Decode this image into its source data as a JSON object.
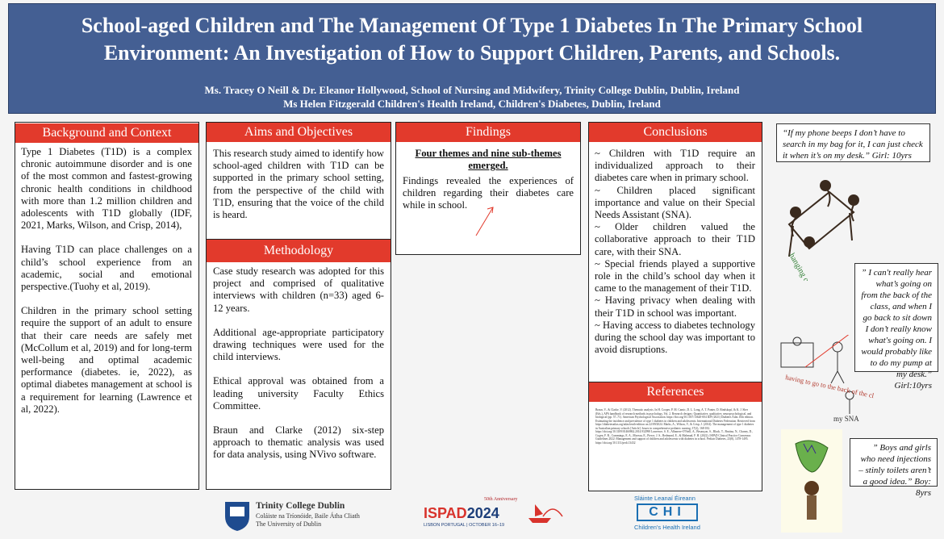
{
  "header": {
    "title": "School-aged Children and The Management Of Type 1 Diabetes In The Primary School Environment: An Investigation of How to Support Children, Parents, and Schools.",
    "authors_line1": "Ms. Tracey O Neill & Dr. Eleanor Hollywood, School of Nursing and Midwifery, Trinity College Dublin, Dublin, Ireland",
    "authors_line2": "Ms Helen Fitzgerald Children's Health Ireland, Children's Diabetes, Dublin, Ireland"
  },
  "background": {
    "title": "Background and Context",
    "p1": "Type 1 Diabetes (T1D) is a complex chronic autoimmune disorder and is one of the most common and fastest-growing chronic health conditions in childhood with more than 1.2 million children and adolescents with T1D globally (IDF, 2021, Marks, Wilson, and Crisp, 2014),",
    "p2": "Having T1D can place challenges on a child’s school experience from an academic, social and emotional perspective.(Tuohy et al, 2019).",
    "p3": "Children in the primary school setting require the support of an adult to ensure that their care needs are safely met (McCollum et al, 2019) and for long-term well-being and optimal academic performance (diabetes. ie, 2022), as optimal diabetes management at school is a requirement for learning (Lawrence et al, 2022)."
  },
  "aims": {
    "title": "Aims and Objectives",
    "text": "This research study aimed to identify how school-aged children with T1D can be supported in the primary school setting, from the perspective of the child with T1D, ensuring that the voice of the child is heard."
  },
  "methodology": {
    "title": "Methodology",
    "p1": "Case study research was adopted for this project and comprised of qualitative interviews with children (n=33) aged 6-12 years.",
    "p2": "Additional age-appropriate participatory drawing techniques were used for the child interviews.",
    "p3": "Ethical approval was obtained from a leading university Faculty Ethics Committee.",
    "p4": "Braun and Clarke (2012) six-step approach to thematic analysis was used for data analysis, using NVivo software."
  },
  "findings": {
    "title": "Findings",
    "heading": "Four themes and nine sub-themes emerged",
    "heading_period": ".",
    "text": "Findings revealed the experiences of children regarding their diabetes care while in school."
  },
  "conclusions": {
    "title": "Conclusions",
    "items": [
      "~ Children with T1D require an individualized approach to their diabetes care when in primary school.",
      "~ Children placed significant importance and value on their Special Needs Assistant (SNA).",
      "~ Older children valued the collaborative approach to their T1D care, with their SNA.",
      "~ Special friends played a supportive role in the child’s school day when it came to the management of their T1D.",
      "~ Having privacy when dealing with their T1D in school was important.",
      "~ Having access to diabetes technology during the school day was important to avoid disruptions."
    ]
  },
  "references": {
    "title": "References",
    "text": "Braun, V., & Clarke, V. (2012). Thematic analysis. In H. Cooper, P. M. Camic, D. L. Long, A. T. Panter, D. Rindskopf, & K. J. Sher (Eds.), APA handbook of research methods in psychology, Vol. 2. Research designs: Quantitative, qualitative, neuropsychological, and biological (pp. 57–71). American Psychological Association. https://doi.org/10.1037/13620-004 IDF (2021) Diabetes Atlas 10th edition. Estimating the incidence and prevalence of type 1 diabetes in children and adolescents. International Diabetes Federation. Retrieved from https://diabetesatlas.org/atlas/tenth-edition on 22/09/2024. Marks, A., Wilson, V., & Crisp, J. (2014). The management of type 1 diabetes in Australian primary schools [Article]. Issues in comprehensive pediatric nursing, 37(2), 168-182. https://doi.org/10.3109/01460862.2014.932998 Lawrence, S. E., Albanese-O'Neill, A., Besançon, S., Black, T., Bratina, N., Chaney, D., Cogen, F. R., Cummings, E. A., Moreau, E., Pierce, J. S., Redmond, E., & Mahmud, F. H. (2022). ISPAD Clinical Practice Consensus Guidelines 2022: Management and support of children and adolescents with diabetes in school. Pediatr Diabetes, 23(8), 1478-1495. https://doi.org/10.1111/pedi.13432"
  },
  "quotes": {
    "q1": "“If my phone beeps I don’t have to search in my bag for it, I can just check it when it’s on my desk.” Girl: 10yrs",
    "q2": "” I can't really hear what’s going on from the back of the class, and when I go back to sit down I don’t really know what's going on. I would probably like to do my pump at my desk.” Girl:10yrs",
    "q3": "” Boys and girls who need injections – stinly toilets aren’t a good idea.” Boy: 8yrs"
  },
  "drawings": {
    "d1_caption": "hanging out together",
    "d2_caption": "having to go to the back of the class for my pump.",
    "d2_label": "my SNA"
  },
  "logos": {
    "tcd_name": "Trinity College Dublin",
    "tcd_irish": "Coláiste na Tríonóide, Baile Átha Cliath",
    "tcd_sub": "The University of Dublin",
    "ispad_name": "ISPAD",
    "ispad_year": "2024",
    "ispad_anniv": "50th Anniversary",
    "ispad_loc": "LISBON PORTUGAL | OCTOBER 16–19",
    "chi_irish": "Sláinte Leanaí Éireann",
    "chi_letters": "CHI",
    "chi_name": "Children's Health Ireland"
  },
  "colors": {
    "header_bg": "#445f93",
    "title_red": "#e23a2c"
  }
}
